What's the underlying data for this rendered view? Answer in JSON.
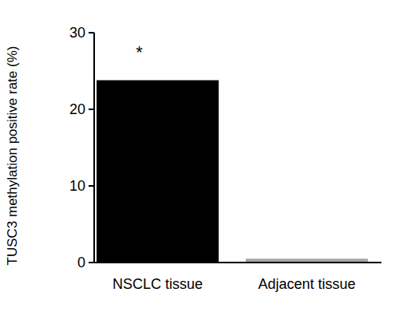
{
  "chart_data": {
    "type": "bar",
    "y_label": "TUSC3 methylation positive rate (%)",
    "categories": [
      "NSCLC tissue",
      "Adjacent tissue"
    ],
    "values": [
      23.8,
      0.5
    ],
    "colors": [
      "#000000",
      "#a6a6a6"
    ],
    "ylim": [
      0,
      30
    ],
    "yticks": [
      0,
      10,
      20,
      30
    ],
    "grid": false,
    "annotations": [
      {
        "text": "*",
        "category": "NSCLC tissue"
      }
    ]
  }
}
